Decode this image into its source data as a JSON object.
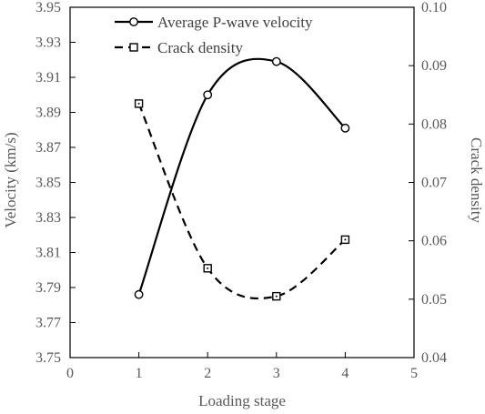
{
  "chart_data": {
    "type": "line",
    "xlabel": "Loading stage",
    "ylabel": "Velocity (km/s)",
    "y2label": "Crack density",
    "xlim": [
      0,
      5
    ],
    "ylim": [
      3.75,
      3.95
    ],
    "y2lim": [
      0.04,
      0.1
    ],
    "x_ticks": [
      "0",
      "1",
      "2",
      "3",
      "4",
      "5"
    ],
    "y_ticks": [
      "3.75",
      "3.77",
      "3.79",
      "3.81",
      "3.83",
      "3.85",
      "3.87",
      "3.89",
      "3.91",
      "3.93",
      "3.95"
    ],
    "y2_ticks": [
      "0.04",
      "0.05",
      "0.06",
      "0.07",
      "0.08",
      "0.09",
      "0.10"
    ],
    "grid": false,
    "legend_position": "top-center",
    "series": [
      {
        "name": "Average P-wave velocity",
        "axis": "left",
        "marker": "circle",
        "line_style": "solid",
        "color": "#000000",
        "x": [
          1,
          2,
          3,
          4
        ],
        "y": [
          3.786,
          3.9,
          3.919,
          3.881
        ]
      },
      {
        "name": "Crack density",
        "axis": "right",
        "marker": "square",
        "line_style": "dashed",
        "color": "#000000",
        "x": [
          1,
          2,
          3,
          4
        ],
        "y": [
          0.0835,
          0.0553,
          0.0505,
          0.0602
        ]
      }
    ]
  }
}
